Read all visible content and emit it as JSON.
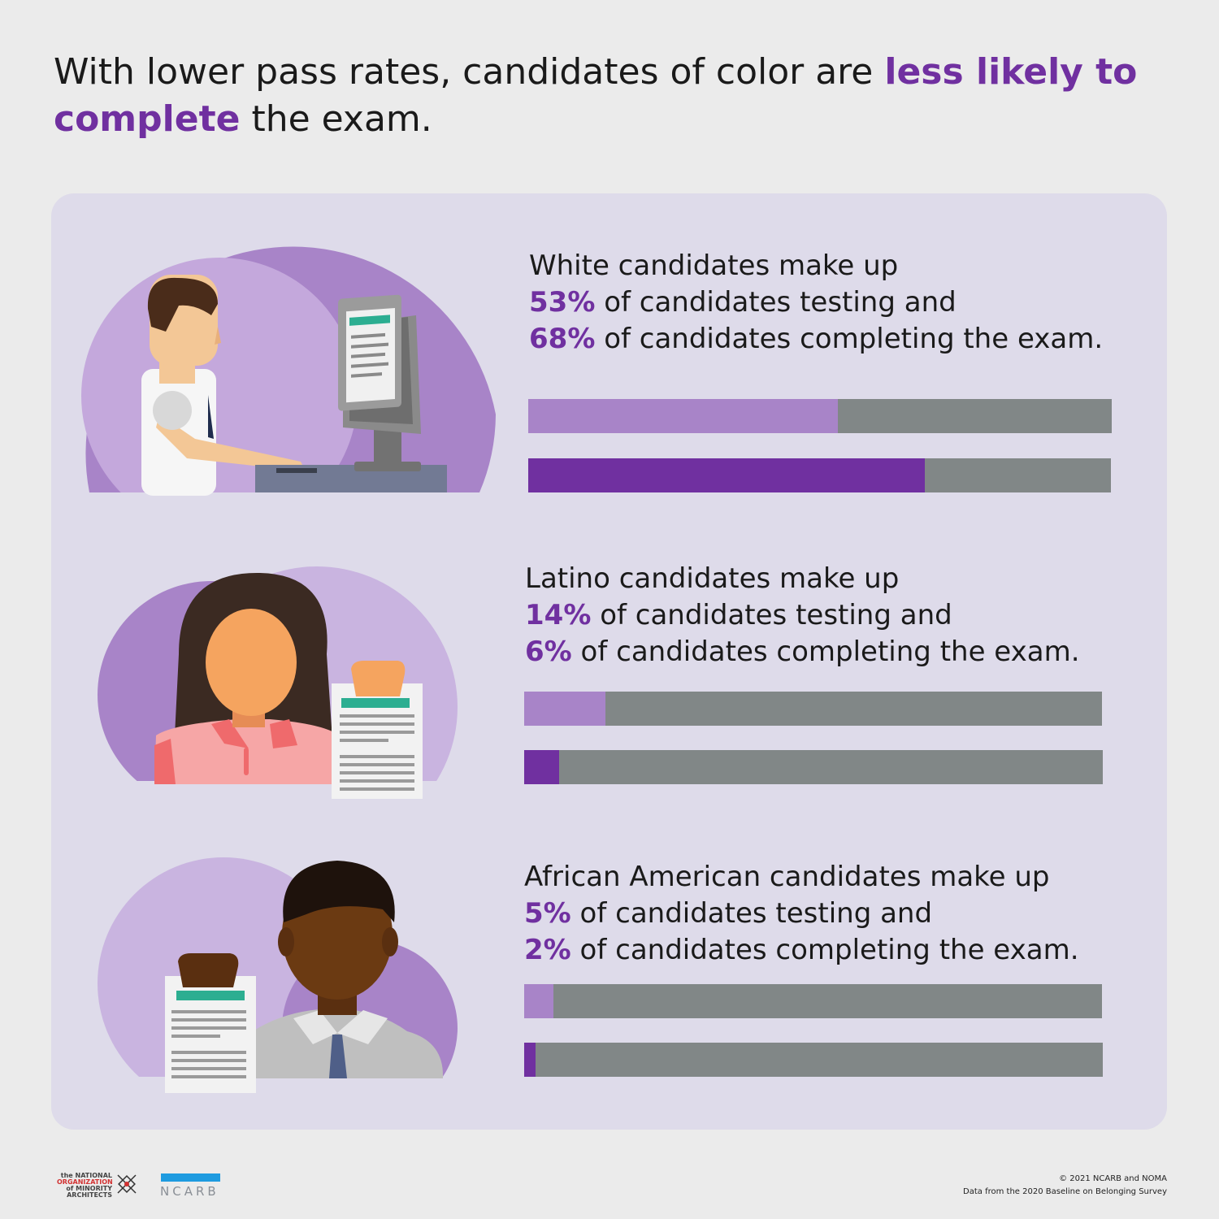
{
  "title": {
    "part1": "With lower pass rates, candidates of color are ",
    "highlight1": "less likely to",
    "highlight2": "complete",
    "part2": " the exam."
  },
  "colors": {
    "testing_fill": "#a884c8",
    "completing_fill": "#7030a0",
    "bar_track": "#818787",
    "accent": "#7030a0"
  },
  "rows": [
    {
      "line1": "White candidates make up",
      "testing_pct": "53%",
      "testing_rest": " of candidates testing and",
      "completing_pct": "68%",
      "completing_rest": " of candidates completing the exam."
    },
    {
      "line1": "Latino candidates make up",
      "testing_pct": "14%",
      "testing_rest": " of candidates testing and",
      "completing_pct": "6%",
      "completing_rest": " of candidates completing the exam."
    },
    {
      "line1": "African American candidates make up",
      "testing_pct": "5%",
      "testing_rest": " of candidates testing and",
      "completing_pct": "2%",
      "completing_rest": " of candidates completing the exam."
    }
  ],
  "chart_data": {
    "type": "bar",
    "categories": [
      "White",
      "Latino",
      "African American"
    ],
    "series": [
      {
        "name": "candidates testing",
        "values": [
          53,
          14,
          5
        ]
      },
      {
        "name": "candidates completing the exam",
        "values": [
          68,
          6,
          2
        ]
      }
    ],
    "ylim": [
      0,
      100
    ]
  },
  "footer": {
    "copyright": "© 2021 NCARB and NOMA",
    "source": "Data from the 2020 Baseline on Belonging Survey",
    "noma_logo_text": [
      "the NATIONAL",
      "ORGANIZATION",
      "of MINORITY",
      "ARCHITECTS"
    ],
    "ncarb_logo_text": "NCARB"
  }
}
